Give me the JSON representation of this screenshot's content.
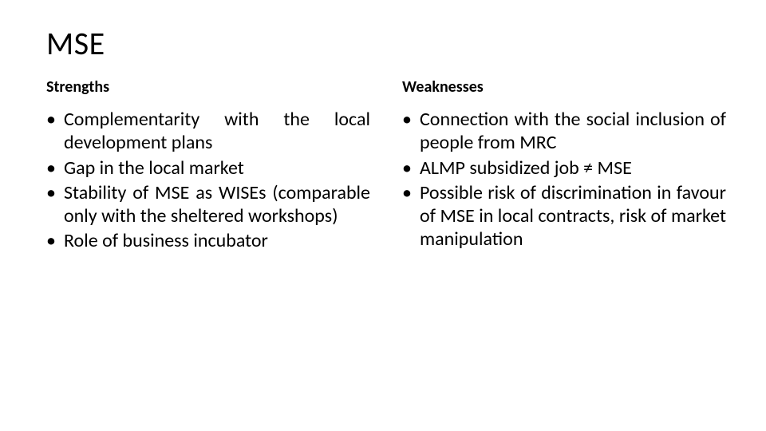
{
  "title": "MSE",
  "left": {
    "header": "Strengths",
    "items": [
      "Complementarity with the local development plans",
      "Gap in the local market",
      "Stability of MSE as WISEs (comparable only with the sheltered workshops)",
      "Role of business incubator"
    ]
  },
  "right": {
    "header": "Weaknesses",
    "items": [
      "Connection with the social inclusion of people from MRC",
      "ALMP subsidized job ≠ MSE",
      "Possible risk of discrimination in favour of MSE in local contracts, risk of market manipulation"
    ]
  },
  "style": {
    "background_color": "#ffffff",
    "text_color": "#000000",
    "title_fontsize": 40,
    "header_fontsize": 20,
    "body_fontsize": 24,
    "font_family": "Calibri"
  }
}
